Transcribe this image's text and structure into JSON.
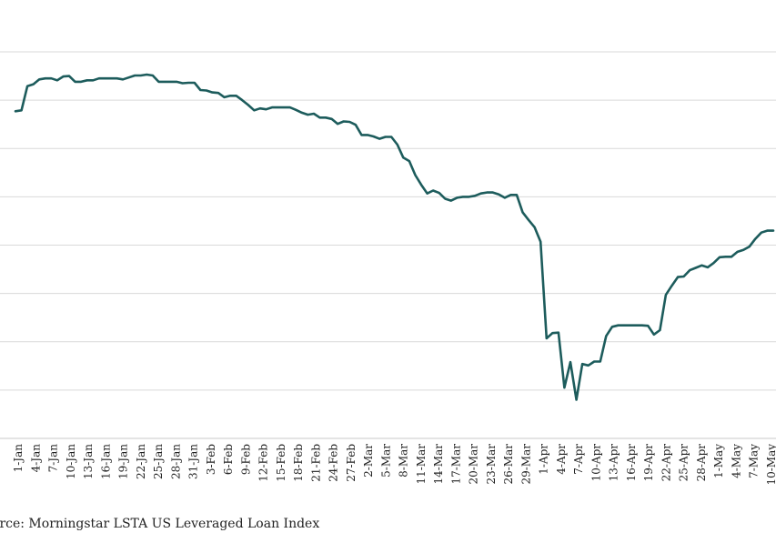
{
  "chart_data": {
    "type": "line",
    "title": "",
    "xlabel": "",
    "ylabel": "",
    "ylim": [
      0,
      8
    ],
    "grid": true,
    "legend": "none",
    "line_color": "#1d5c5c",
    "x_tick_labels": [
      "1-Jan",
      "4-Jan",
      "7-Jan",
      "10-Jan",
      "13-Jan",
      "16-Jan",
      "19-Jan",
      "22-Jan",
      "25-Jan",
      "28-Jan",
      "31-Jan",
      "3-Feb",
      "6-Feb",
      "9-Feb",
      "12-Feb",
      "15-Feb",
      "18-Feb",
      "21-Feb",
      "24-Feb",
      "27-Feb",
      "2-Mar",
      "5-Mar",
      "8-Mar",
      "11-Mar",
      "14-Mar",
      "17-Mar",
      "20-Mar",
      "23-Mar",
      "26-Mar",
      "29-Mar",
      "1-Apr",
      "4-Apr",
      "7-Apr",
      "10-Apr",
      "13-Apr",
      "16-Apr",
      "19-Apr",
      "22-Apr",
      "25-Apr",
      "28-Apr",
      "1-May",
      "4-May",
      "7-May",
      "10-May"
    ],
    "series": [
      {
        "values": [
          6.77,
          6.79,
          7.29,
          7.33,
          7.43,
          7.45,
          7.45,
          7.41,
          7.49,
          7.5,
          7.38,
          7.38,
          7.41,
          7.41,
          7.45,
          7.45,
          7.45,
          7.45,
          7.43,
          7.47,
          7.51,
          7.51,
          7.53,
          7.51,
          7.38,
          7.38,
          7.38,
          7.38,
          7.35,
          7.36,
          7.36,
          7.21,
          7.2,
          7.16,
          7.15,
          7.06,
          7.09,
          7.09,
          7.0,
          6.9,
          6.79,
          6.83,
          6.81,
          6.85,
          6.85,
          6.85,
          6.85,
          6.8,
          6.74,
          6.7,
          6.72,
          6.64,
          6.64,
          6.61,
          6.51,
          6.56,
          6.55,
          6.49,
          6.28,
          6.28,
          6.25,
          6.2,
          6.24,
          6.24,
          6.08,
          5.81,
          5.74,
          5.45,
          5.25,
          5.07,
          5.13,
          5.08,
          4.96,
          4.92,
          4.98,
          5.0,
          5.0,
          5.02,
          5.07,
          5.09,
          5.09,
          5.05,
          4.98,
          5.04,
          5.04,
          4.68,
          4.52,
          4.37,
          4.07,
          2.07,
          2.18,
          2.19,
          1.05,
          1.58,
          0.8,
          1.54,
          1.51,
          1.59,
          1.59,
          2.12,
          2.31,
          2.34,
          2.34,
          2.34,
          2.34,
          2.34,
          2.33,
          2.15,
          2.24,
          2.97,
          3.16,
          3.34,
          3.35,
          3.48,
          3.53,
          3.58,
          3.54,
          3.63,
          3.75,
          3.76,
          3.76,
          3.86,
          3.9,
          3.97,
          4.13,
          4.26,
          4.3,
          4.3
        ]
      }
    ]
  },
  "source": "ource: Morningstar LSTA US Leveraged Loan Index"
}
